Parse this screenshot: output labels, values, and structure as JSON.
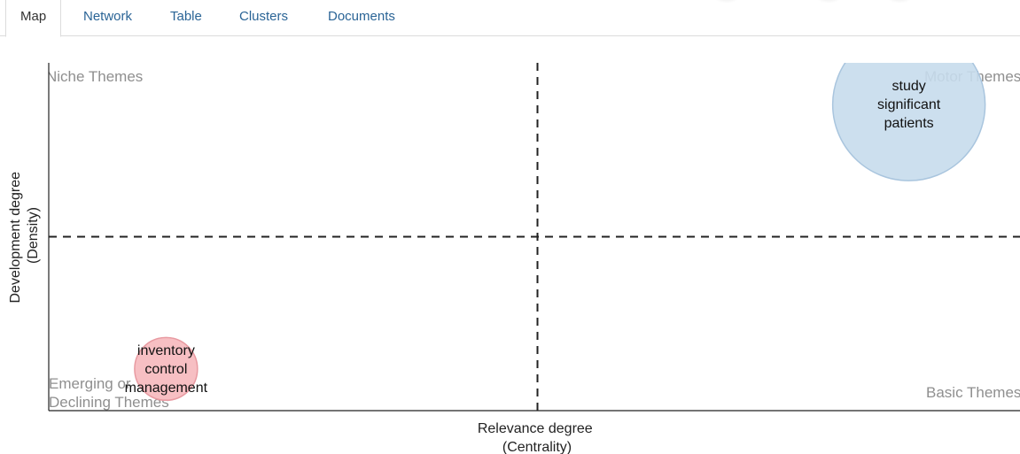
{
  "tabs": [
    {
      "label": "Map",
      "active": true
    },
    {
      "label": "Network",
      "active": false
    },
    {
      "label": "Table",
      "active": false
    },
    {
      "label": "Clusters",
      "active": false
    },
    {
      "label": "Documents",
      "active": false
    }
  ],
  "chart_data": {
    "type": "scatter",
    "title": "",
    "xlabel": [
      "Relevance degree",
      "(Centrality)"
    ],
    "ylabel": [
      "Development degree",
      "(Density)"
    ],
    "xlim": [
      0,
      1
    ],
    "ylim": [
      0,
      1
    ],
    "divider_x": 0.5,
    "divider_y": 0.5,
    "quadrant_labels": {
      "top_left": "Niche Themes",
      "top_right": "Motor Themes",
      "bottom_left": "Emerging or Declining Themes",
      "bottom_right": "Basic Themes"
    },
    "clusters": [
      {
        "lines": [
          "study",
          "significant",
          "patients"
        ],
        "x": 0.88,
        "y": 0.88,
        "size": 1.0,
        "color": "#c6dbec",
        "stroke": "#a9c5de"
      },
      {
        "lines": [
          "inventory",
          "control",
          "management"
        ],
        "x": 0.12,
        "y": 0.12,
        "size": 0.17,
        "color": "#f6b8bd",
        "stroke": "#e89aa1"
      }
    ]
  }
}
